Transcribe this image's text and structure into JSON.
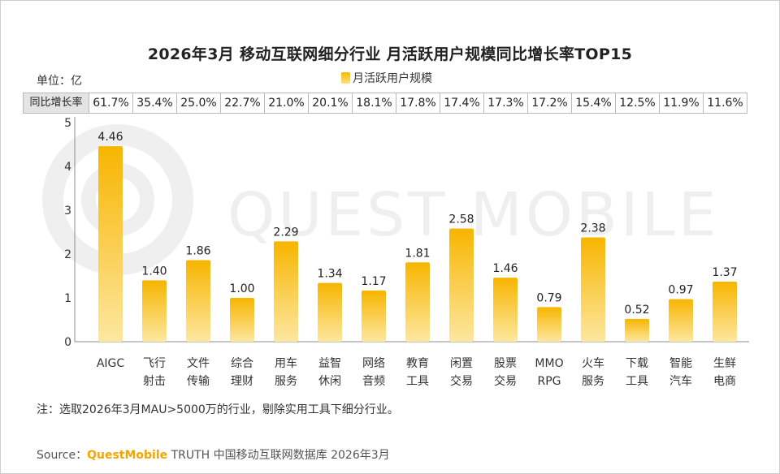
{
  "title": "2026年3月 移动互联网细分行业 月活跃用户规模同比增长率TOP15",
  "unit_label": "单位：亿",
  "legend_label": "月活跃用户规模",
  "growth_row_label": "同比增长率",
  "watermark_text": "QUEST MOBILE",
  "note": "注：选取2026年3月MAU>5000万的行业，剔除实用工具下细分行业。",
  "source": {
    "prefix": "Source：",
    "brand": "QuestMobile",
    "rest": " TRUTH 中国移动互联网数据库 2026年3月"
  },
  "colors": {
    "bar_top": "#f7b500",
    "bar_bottom": "#fde7a0",
    "brand": "#f5a400",
    "watermark": "#ededed"
  },
  "chart_data": {
    "type": "bar",
    "title": "2026年3月 移动互联网细分行业 月活跃用户规模同比增长率TOP15",
    "ylabel": "单位：亿",
    "ylim": [
      0,
      5
    ],
    "yticks": [
      "0",
      "1",
      "2",
      "3",
      "4",
      "5"
    ],
    "categories": [
      [
        "AIGC"
      ],
      [
        "飞行",
        "射击"
      ],
      [
        "文件",
        "传输"
      ],
      [
        "综合",
        "理财"
      ],
      [
        "用车",
        "服务"
      ],
      [
        "益智",
        "休闲"
      ],
      [
        "网络",
        "音频"
      ],
      [
        "教育",
        "工具"
      ],
      [
        "闲置",
        "交易"
      ],
      [
        "股票",
        "交易"
      ],
      [
        "MMO",
        "RPG"
      ],
      [
        "火车",
        "服务"
      ],
      [
        "下载",
        "工具"
      ],
      [
        "智能",
        "汽车"
      ],
      [
        "生鲜",
        "电商"
      ]
    ],
    "series": [
      {
        "name": "月活跃用户规模",
        "values": [
          4.46,
          1.4,
          1.86,
          1.0,
          2.29,
          1.34,
          1.17,
          1.81,
          2.58,
          1.46,
          0.79,
          2.38,
          0.52,
          0.97,
          1.37
        ]
      }
    ],
    "value_labels": [
      "4.46",
      "1.40",
      "1.86",
      "1.00",
      "2.29",
      "1.34",
      "1.17",
      "1.81",
      "2.58",
      "1.46",
      "0.79",
      "2.38",
      "0.52",
      "0.97",
      "1.37"
    ],
    "growth_rates": [
      "61.7%",
      "35.4%",
      "25.0%",
      "22.7%",
      "21.0%",
      "20.1%",
      "18.1%",
      "17.8%",
      "17.4%",
      "17.3%",
      "17.2%",
      "15.4%",
      "12.5%",
      "11.9%",
      "11.6%"
    ],
    "grid": false,
    "legend_position": "top-center"
  }
}
